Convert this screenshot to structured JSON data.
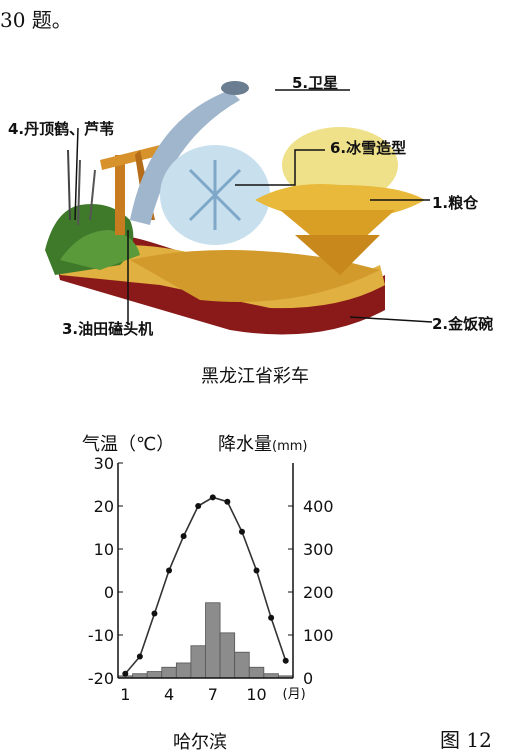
{
  "header": {
    "fragment": "30 题。"
  },
  "float": {
    "labels": {
      "satellite": "5.卫星",
      "crane": "4.丹顶鹤、芦苇",
      "ice": "6.冰雪造型",
      "granary": "1.粮仓",
      "oil": "3.油田磕头机",
      "bowl": "2.金饭碗"
    },
    "caption": "黑龙江省彩车"
  },
  "chart_data": {
    "type": "bar",
    "title": "",
    "left_axis_label": "气温（℃）",
    "right_axis_label": "降水量",
    "right_axis_unit": "(mm)",
    "x_ticks": [
      "1",
      "4",
      "7",
      "10"
    ],
    "x_unit": "(月)",
    "months": [
      1,
      2,
      3,
      4,
      5,
      6,
      7,
      8,
      9,
      10,
      11,
      12
    ],
    "temperature_ylim": [
      -20,
      30
    ],
    "temperature_ticks": [
      30,
      20,
      10,
      0,
      -10,
      -20
    ],
    "precip_ylim": [
      0,
      500
    ],
    "precip_ticks": [
      400,
      300,
      200,
      100,
      0
    ],
    "series": [
      {
        "values": [
          -19,
          -15,
          -5,
          5,
          13,
          20,
          22,
          21,
          14,
          5,
          -6,
          -16
        ]
      },
      {
        "values": [
          5,
          10,
          15,
          25,
          35,
          75,
          175,
          105,
          60,
          25,
          10,
          5
        ]
      }
    ]
  },
  "chart_caption": "哈尔滨",
  "figure_number": "图 12"
}
